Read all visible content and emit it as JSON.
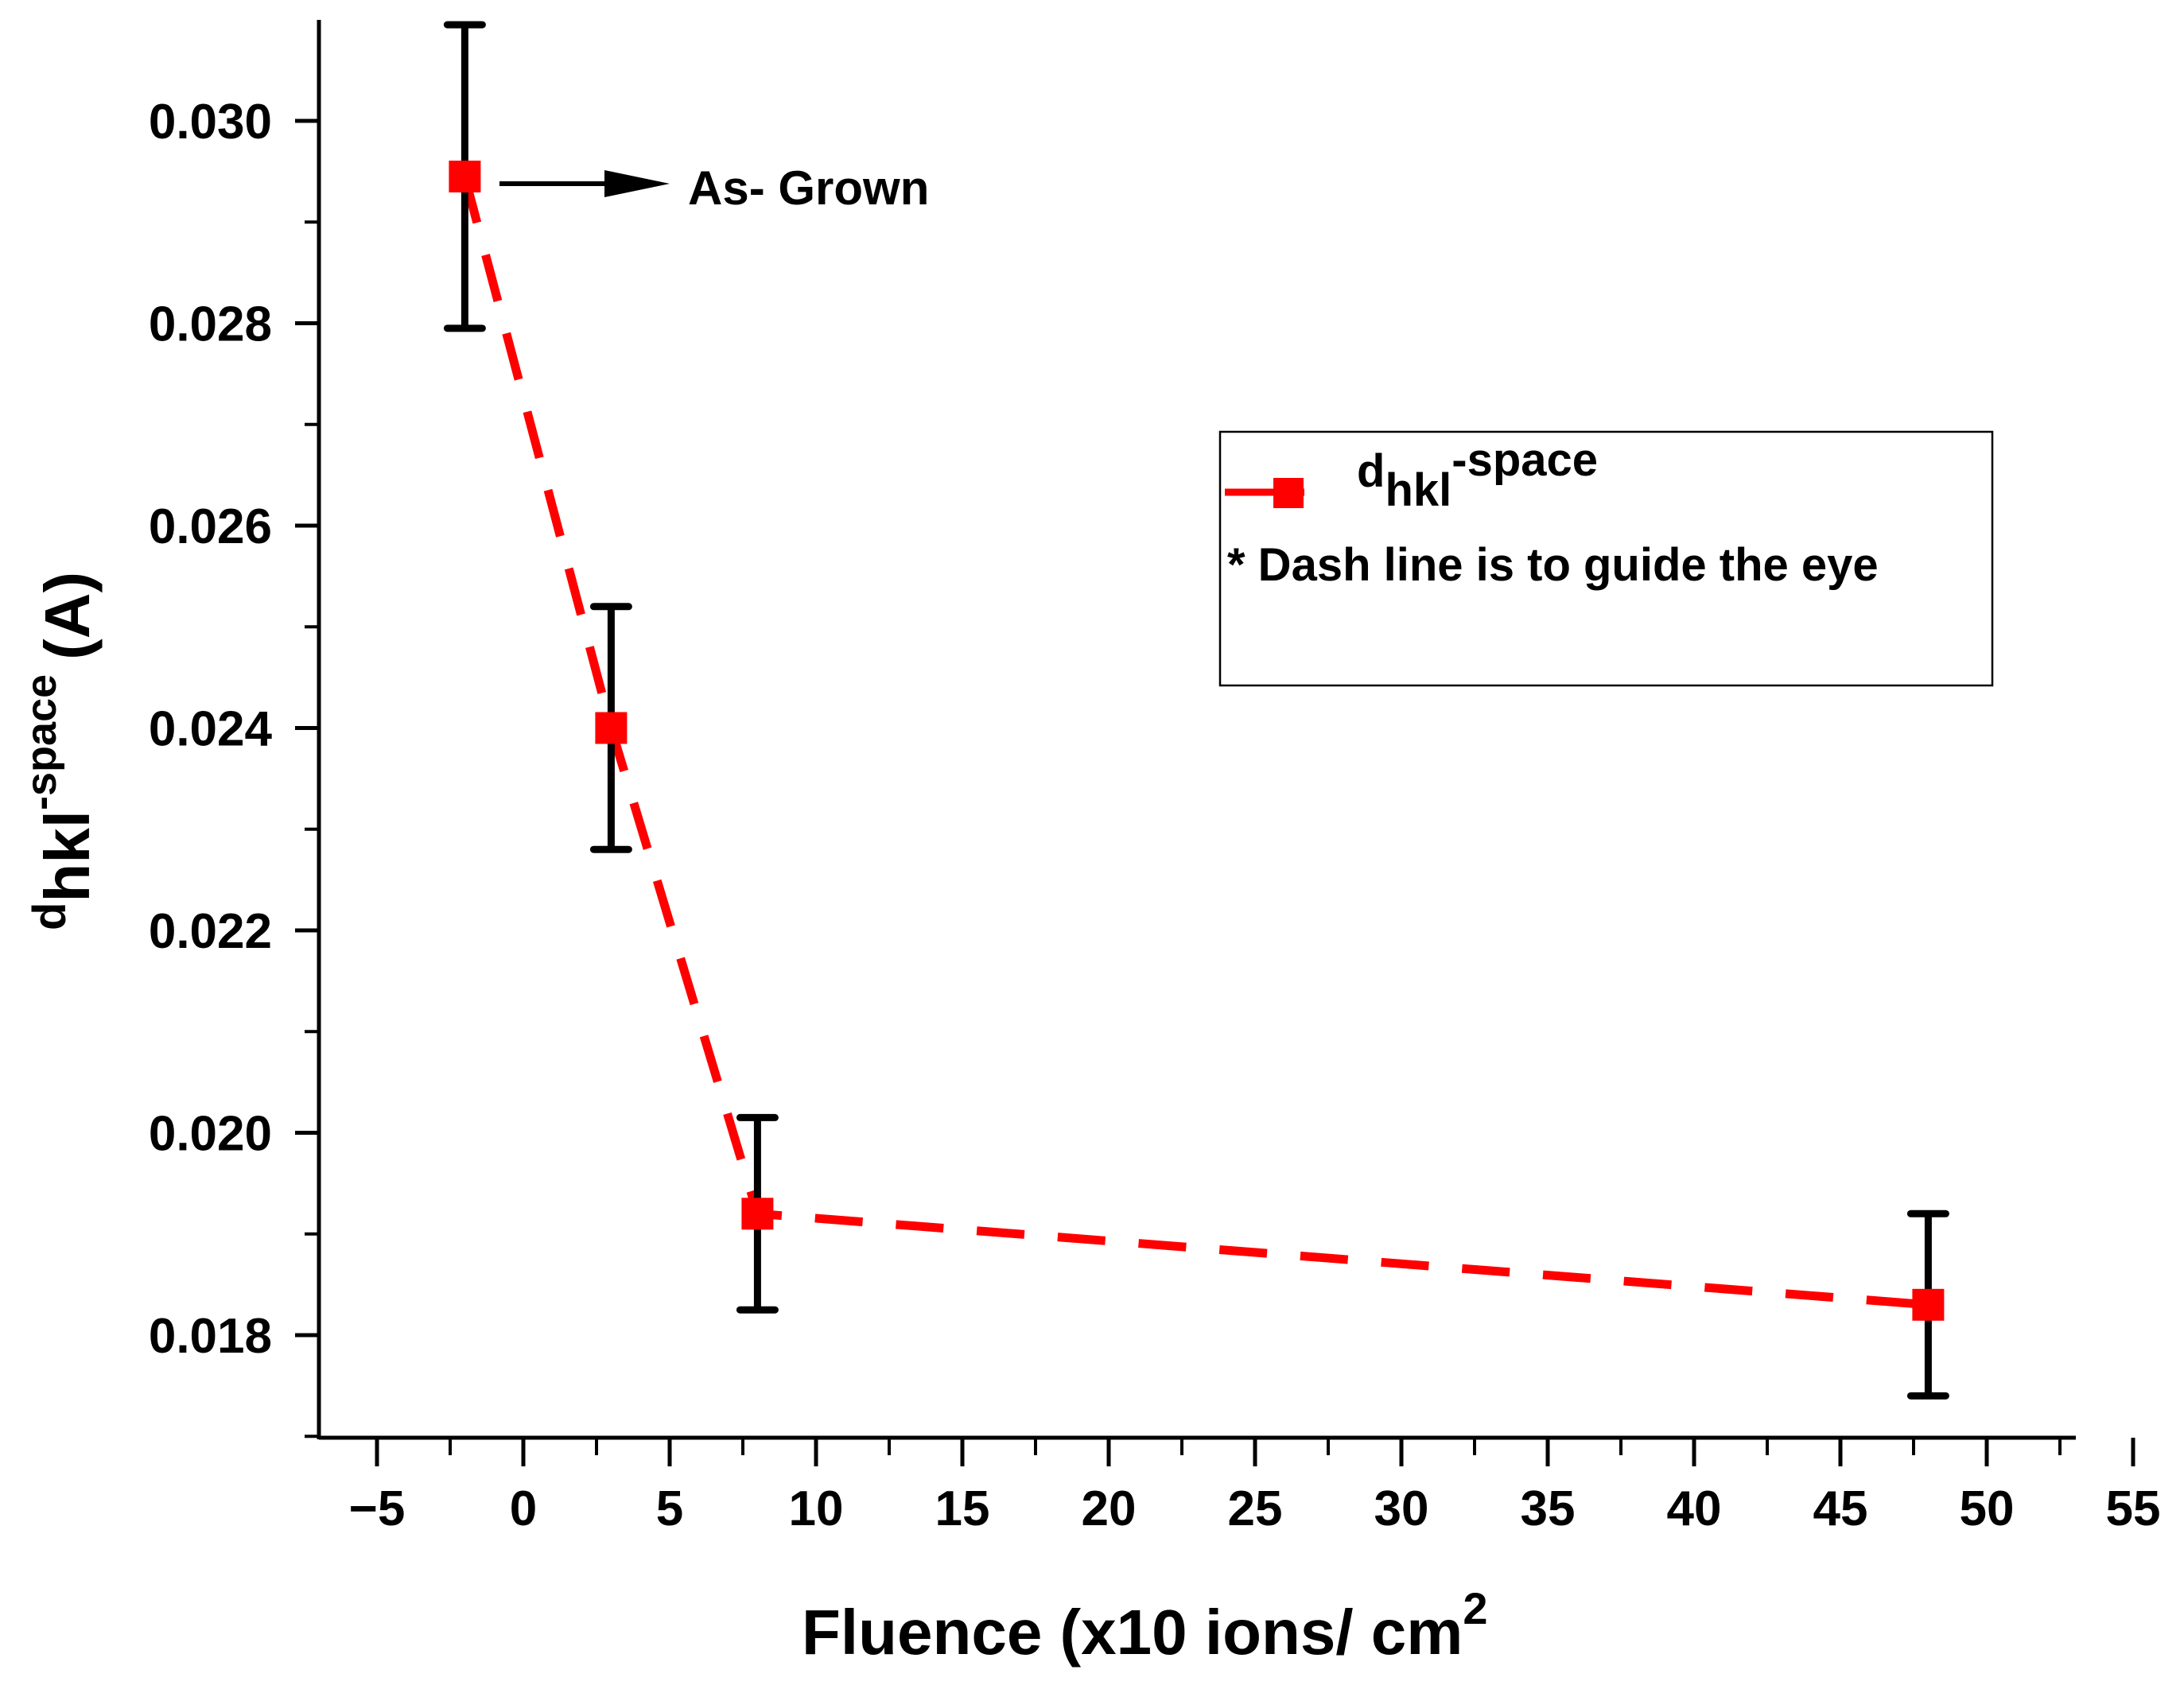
{
  "chart_data": {
    "type": "line",
    "title": "",
    "xlabel": {
      "main": "Fluence (x10 ions/ cm",
      "sup": "2"
    },
    "ylabel": {
      "base": "d",
      "sub": "hkl",
      "sup": "-space",
      "unit": "(A)"
    },
    "xlim": [
      -7,
      53
    ],
    "ylim": [
      0.017,
      0.031
    ],
    "x_ticks": [
      -5,
      0,
      5,
      10,
      15,
      20,
      25,
      30,
      35,
      40,
      45,
      50,
      55
    ],
    "x_tick_labels": [
      "−5",
      "0",
      "5",
      "10",
      "15",
      "20",
      "25",
      "30",
      "35",
      "40",
      "45",
      "50",
      "55"
    ],
    "y_ticks": [
      0.018,
      0.02,
      0.022,
      0.024,
      0.026,
      0.028,
      0.03
    ],
    "y_tick_labels": [
      "0.018",
      "0.020",
      "0.022",
      "0.024",
      "0.026",
      "0.028",
      "0.030"
    ],
    "series": [
      {
        "name": "d_hkl-space",
        "color": "#ff0000",
        "line_style": "dashed",
        "marker": "square",
        "errorbar_color": "#000000",
        "x": [
          -2,
          3,
          8,
          48
        ],
        "values": [
          0.02945,
          0.024,
          0.0192,
          0.0183
        ],
        "error": [
          0.0015,
          0.0012,
          0.00095,
          0.0009
        ]
      }
    ],
    "annotation": {
      "text": "As- Grown",
      "arrow": "right",
      "target_point_index": 0
    },
    "legend": {
      "placement": "center-right",
      "entry": {
        "base": "d",
        "sub": "hkl",
        "sup": "-space"
      },
      "note": "* Dash line is to guide the eye"
    },
    "grid": false
  }
}
